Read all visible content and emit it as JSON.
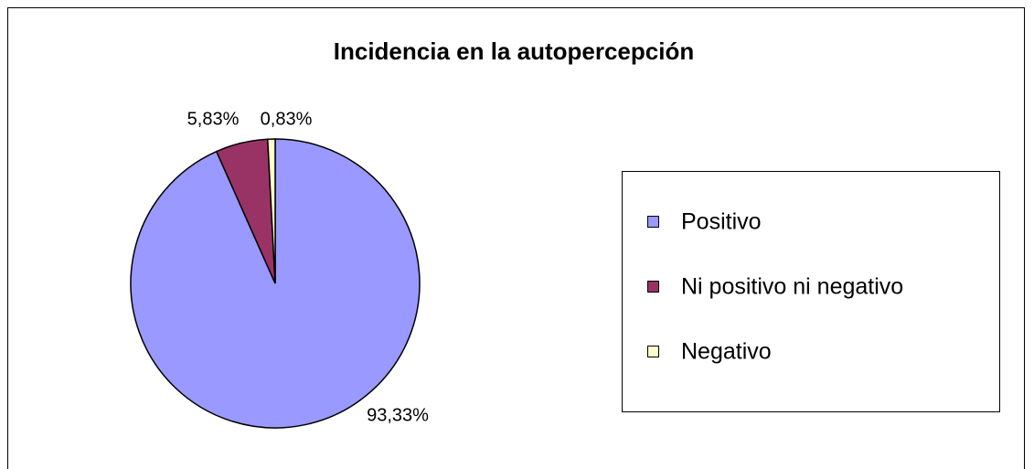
{
  "chart_data": {
    "type": "pie",
    "title": "Incidencia en la autopercepción",
    "categories": [
      "Positivo",
      "Ni positivo ni negativo",
      "Negativo"
    ],
    "values": [
      93.33,
      5.83,
      0.83
    ],
    "value_labels": [
      "93,33%",
      "5,83%",
      "0,83%"
    ],
    "colors": [
      "#9999ff",
      "#993366",
      "#ffffcc"
    ],
    "legend": "right"
  }
}
